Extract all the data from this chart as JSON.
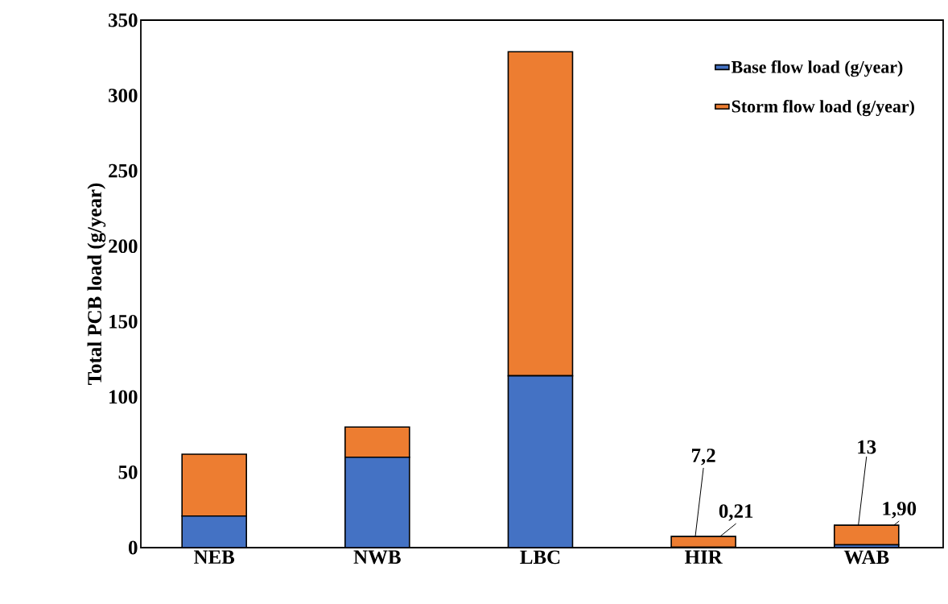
{
  "chart_data": {
    "type": "bar",
    "stacked": true,
    "ylabel": "Total PCB load (g/year)",
    "categories": [
      "NEB",
      "NWB",
      "LBC",
      "HIR",
      "WAB"
    ],
    "series": [
      {
        "name": "Base flow load (g/year)",
        "color": "#4472c4",
        "values": [
          21,
          60,
          114,
          0.21,
          1.9
        ],
        "value_labels": [
          null,
          null,
          null,
          "0,21",
          "1,90"
        ]
      },
      {
        "name": "Storm flow load (g/year)",
        "color": "#ed7d31",
        "values": [
          41,
          20,
          215,
          7.2,
          13
        ],
        "value_labels": [
          null,
          null,
          null,
          "7,2",
          "13"
        ]
      }
    ],
    "ylim": [
      0,
      350
    ],
    "yticks": [
      0,
      50,
      100,
      150,
      200,
      250,
      300,
      350
    ],
    "grid": false,
    "legend": "top right"
  }
}
